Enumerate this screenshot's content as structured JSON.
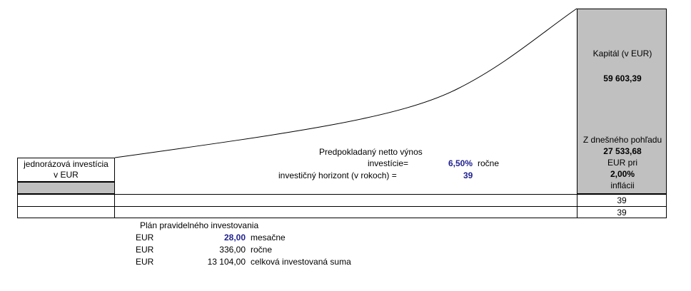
{
  "capital": {
    "label": "Kapitál (v EUR)",
    "value": "59 603,39",
    "today_label": "Z dnešného pohľadu",
    "today_value": "27 533,68",
    "eur_pri": "EUR pri",
    "inflation": "2,00%",
    "inflation_label": "inflácii"
  },
  "lump_sum": {
    "label_line1": "jednorázová investícia",
    "label_line2": "v EUR"
  },
  "yield": {
    "label_line1": "Predpokladaný netto výnos",
    "label_line2": "investície=",
    "value": "6,50%",
    "unit": "ročne"
  },
  "horizon": {
    "label": "investičný horizont (v rokoch) =",
    "value": "39"
  },
  "table_rows": [
    {
      "value": "39"
    },
    {
      "value": "39"
    }
  ],
  "plan": {
    "title": "Plán pravidelného investovania",
    "rows": [
      {
        "currency": "EUR",
        "amount": "28,00",
        "label": "mesačne"
      },
      {
        "currency": "EUR",
        "amount": "336,00",
        "label": "ročne"
      },
      {
        "currency": "EUR",
        "amount": "13 104,00",
        "label": "celková investovaná suma"
      }
    ]
  }
}
